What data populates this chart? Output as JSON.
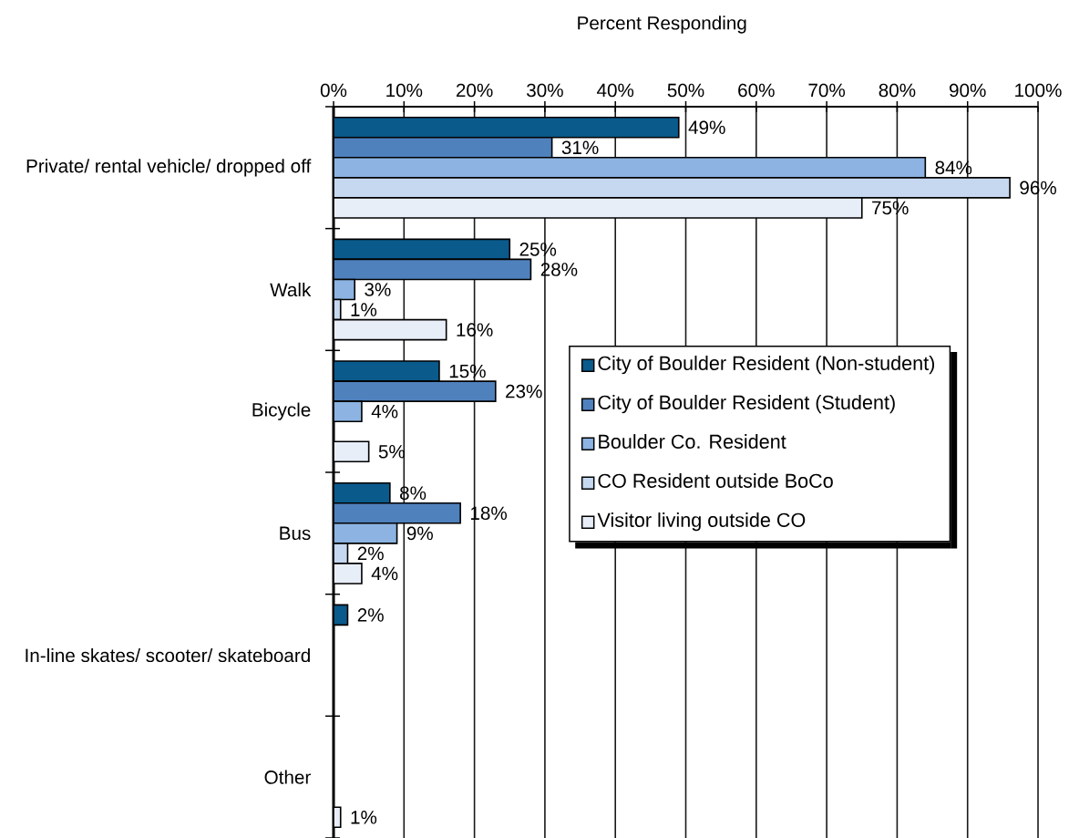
{
  "chart_data": {
    "type": "bar",
    "orientation": "horizontal",
    "xlabel": "Percent Responding",
    "categories": [
      "Private/ rental vehicle/ dropped off",
      "Walk",
      "Bicycle",
      "Bus",
      "In-line skates/ scooter/ skateboard",
      "Other"
    ],
    "series": [
      {
        "name": "City of Boulder Resident (Non-student)",
        "color": "#0a5a8c",
        "values": [
          49,
          25,
          15,
          8,
          2,
          null
        ],
        "value_labels": [
          "49%",
          "25%",
          "15%",
          "8%",
          "2%",
          null
        ]
      },
      {
        "name": "City of Boulder Resident (Student)",
        "color": "#4f81bd",
        "values": [
          31,
          28,
          23,
          18,
          null,
          null
        ],
        "value_labels": [
          "31%",
          "28%",
          "23%",
          "18%",
          null,
          null
        ]
      },
      {
        "name": "Boulder Co. Resident",
        "color": "#8cb3e1",
        "values": [
          84,
          3,
          4,
          9,
          null,
          null
        ],
        "value_labels": [
          "84%",
          "3%",
          "4%",
          "9%",
          null,
          null
        ]
      },
      {
        "name": "CO Resident outside BoCo",
        "color": "#c5d8f0",
        "values": [
          96,
          1,
          null,
          2,
          null,
          null
        ],
        "value_labels": [
          "96%",
          "1%",
          null,
          "2%",
          null,
          null
        ]
      },
      {
        "name": "Visitor living outside CO",
        "color": "#e8eef8",
        "values": [
          75,
          16,
          5,
          4,
          null,
          1
        ],
        "value_labels": [
          "75%",
          "16%",
          "5%",
          "4%",
          null,
          "1%"
        ]
      }
    ],
    "xlim": [
      0,
      100
    ],
    "xticks": [
      {
        "value": 0,
        "label": "0%"
      },
      {
        "value": 10,
        "label": "10%"
      },
      {
        "value": 20,
        "label": "20%"
      },
      {
        "value": 30,
        "label": "30%"
      },
      {
        "value": 40,
        "label": "40%"
      },
      {
        "value": 50,
        "label": "50%"
      },
      {
        "value": 60,
        "label": "60%"
      },
      {
        "value": 70,
        "label": "70%"
      },
      {
        "value": 80,
        "label": "80%"
      },
      {
        "value": 90,
        "label": "90%"
      },
      {
        "value": 100,
        "label": "100%"
      }
    ],
    "grid": "x",
    "legend": "right"
  }
}
